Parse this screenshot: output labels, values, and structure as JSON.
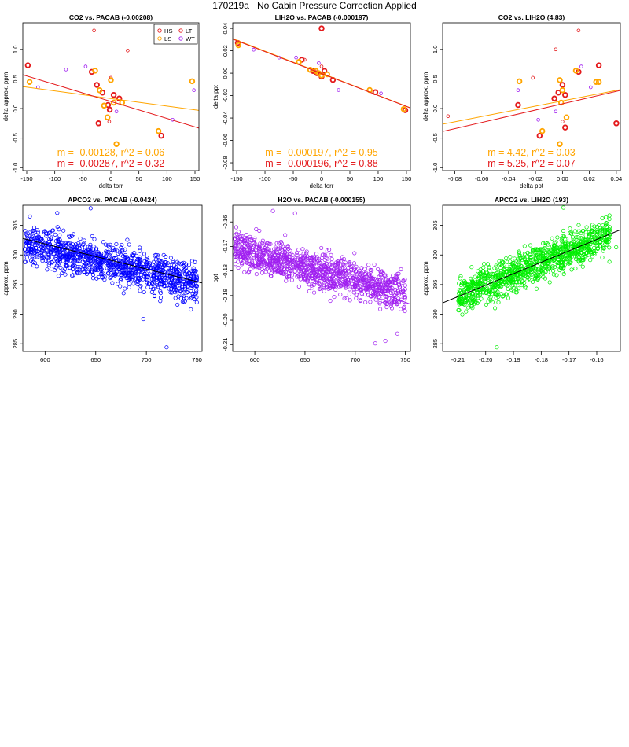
{
  "page": {
    "title": "170219a   No Cabin Pressure Correction Applied"
  },
  "colors": {
    "HS": "#e41a1c",
    "LS": "#ffa500",
    "LT": "#e41a1c",
    "WT": "#a020f0",
    "blue": "#0000ff",
    "purple": "#a020f0",
    "green": "#00ee00",
    "black": "#000000"
  },
  "chart_data": [
    {
      "type": "scatter",
      "title": "CO2 vs. PACAB (-0.00208)",
      "xlabel": "delta torr",
      "ylabel": "delta approx. ppm",
      "xlim": [
        -157,
        157
      ],
      "ylim": [
        -1.05,
        1.45
      ],
      "xticks": [
        -150,
        -100,
        -50,
        0,
        50,
        100,
        150
      ],
      "xtick_labels": [
        "-150",
        "-100",
        "-50",
        "0",
        "50",
        "100",
        "150"
      ],
      "yticks": [
        -1.0,
        -0.5,
        0.0,
        0.5,
        1.0
      ],
      "ytick_labels": [
        "-1.0",
        "-0.5",
        "0.0",
        "0.5",
        "1.0"
      ],
      "legend": {
        "position": "top-right",
        "entries": [
          {
            "key": "HS",
            "label": "HS"
          },
          {
            "key": "LS",
            "label": "LS"
          },
          {
            "key": "LT",
            "label": "LT"
          },
          {
            "key": "WT",
            "label": "WT"
          }
        ]
      },
      "fits": [
        {
          "key": "LS",
          "slope": -0.00128,
          "intercept": 0.17,
          "label": "m = -0.00128, r^2 = 0.06"
        },
        {
          "key": "HS",
          "slope": -0.00287,
          "intercept": 0.12,
          "label": "m = -0.00287, r^2 = 0.32"
        }
      ],
      "series": [
        {
          "key": "HS",
          "name": "HS",
          "bold": true,
          "x": [
            -148,
            -34,
            -25,
            -15,
            -5,
            -2,
            5,
            15,
            90,
            -22
          ],
          "y": [
            0.73,
            0.62,
            0.4,
            0.27,
            0.06,
            -0.02,
            0.23,
            0.17,
            -0.46,
            -0.25
          ]
        },
        {
          "key": "LS",
          "name": "LS",
          "bold": true,
          "x": [
            -145,
            -28,
            -20,
            -12,
            -6,
            0,
            5,
            20,
            145,
            10,
            85
          ],
          "y": [
            0.45,
            0.64,
            0.31,
            0.05,
            -0.15,
            0.48,
            0.1,
            0.1,
            0.46,
            -0.6,
            -0.38
          ]
        },
        {
          "key": "LT",
          "name": "LT",
          "bold": false,
          "x": [
            -30,
            30,
            0,
            -3
          ],
          "y": [
            1.32,
            0.98,
            0.52,
            -0.22
          ]
        },
        {
          "key": "WT",
          "name": "WT",
          "bold": false,
          "x": [
            -130,
            -80,
            -45,
            10,
            110,
            148
          ],
          "y": [
            0.36,
            0.66,
            0.71,
            -0.05,
            -0.19,
            0.31
          ]
        }
      ]
    },
    {
      "type": "scatter",
      "title": "LIH2O vs. PACAB (-0.000197)",
      "xlabel": "delta torr",
      "ylabel": "delta ppt",
      "xlim": [
        -157,
        157
      ],
      "ylim": [
        -0.087,
        0.045
      ],
      "xticks": [
        -150,
        -100,
        -50,
        0,
        50,
        100,
        150
      ],
      "xtick_labels": [
        "-150",
        "-100",
        "-50",
        "0",
        "50",
        "100",
        "150"
      ],
      "yticks": [
        -0.08,
        -0.06,
        -0.04,
        -0.02,
        0.0,
        0.02,
        0.04
      ],
      "ytick_labels": [
        "-0.08",
        "-0.06",
        "-0.04",
        "-0.02",
        "0.00",
        "0.02",
        "0.04"
      ],
      "fits": [
        {
          "key": "LS",
          "slope": -0.000197,
          "intercept": 0.0,
          "label": "m = -0.000197, r^2 = 0.95"
        },
        {
          "key": "HS",
          "slope": -0.000196,
          "intercept": -0.0003,
          "label": "m = -0.000196, r^2 = 0.88"
        }
      ],
      "series": [
        {
          "key": "HS",
          "name": "HS",
          "bold": true,
          "x": [
            -148,
            -35,
            -15,
            -8,
            0,
            5,
            20,
            95,
            148,
            0
          ],
          "y": [
            0.027,
            0.012,
            0.002,
            0.0,
            -0.003,
            0.002,
            -0.006,
            -0.017,
            -0.033,
            0.04
          ]
        },
        {
          "key": "LS",
          "name": "LS",
          "bold": true,
          "x": [
            -147,
            -40,
            -20,
            -10,
            -5,
            0,
            10,
            85,
            145
          ],
          "y": [
            0.025,
            0.01,
            0.003,
            0.002,
            0.0,
            -0.002,
            -0.001,
            -0.015,
            -0.032
          ]
        },
        {
          "key": "LT",
          "name": "LT",
          "bold": false,
          "x": [
            -30,
            0
          ],
          "y": [
            0.012,
            0.006
          ]
        },
        {
          "key": "WT",
          "name": "WT",
          "bold": false,
          "x": [
            -120,
            -75,
            -45,
            -5,
            30,
            105
          ],
          "y": [
            0.021,
            0.014,
            0.014,
            0.009,
            -0.015,
            -0.018
          ]
        }
      ]
    },
    {
      "type": "scatter",
      "title": "CO2 vs. LIH2O (4.83)",
      "xlabel": "delta ppt",
      "ylabel": "delta approx. ppm",
      "xlim": [
        -0.089,
        0.043
      ],
      "ylim": [
        -1.05,
        1.45
      ],
      "xticks": [
        -0.08,
        -0.06,
        -0.04,
        -0.02,
        0.0,
        0.02,
        0.04
      ],
      "xtick_labels": [
        "-0.08",
        "-0.06",
        "-0.04",
        "-0.02",
        "0.00",
        "0.02",
        "0.04"
      ],
      "yticks": [
        -1.0,
        -0.5,
        0.0,
        0.5,
        1.0
      ],
      "ytick_labels": [
        "-1.0",
        "-0.5",
        "0.0",
        "0.5",
        "1.0"
      ],
      "fits": [
        {
          "key": "LS",
          "slope": 4.42,
          "intercept": 0.13,
          "label": "m = 4.42, r^2 = 0.03"
        },
        {
          "key": "HS",
          "slope": 5.25,
          "intercept": 0.08,
          "label": "m = 5.25, r^2 = 0.07"
        }
      ],
      "series": [
        {
          "key": "HS",
          "name": "HS",
          "bold": true,
          "x": [
            -0.033,
            -0.017,
            -0.006,
            0.0,
            0.002,
            0.012,
            0.027,
            0.04,
            0.002,
            -0.003
          ],
          "y": [
            0.06,
            -0.46,
            0.17,
            0.4,
            0.23,
            0.62,
            0.73,
            -0.25,
            -0.32,
            0.27
          ]
        },
        {
          "key": "LS",
          "name": "LS",
          "bold": true,
          "x": [
            -0.032,
            -0.015,
            -0.001,
            -0.002,
            0.0,
            0.003,
            0.01,
            0.025,
            0.027,
            -0.002
          ],
          "y": [
            0.46,
            -0.38,
            0.1,
            0.48,
            0.31,
            -0.15,
            0.64,
            0.45,
            0.45,
            -0.6
          ]
        },
        {
          "key": "LT",
          "name": "LT",
          "bold": false,
          "x": [
            -0.005,
            0.012,
            -0.022,
            0.0,
            -0.085
          ],
          "y": [
            1.0,
            1.32,
            0.52,
            -0.22,
            -0.13
          ]
        },
        {
          "key": "WT",
          "name": "WT",
          "bold": false,
          "x": [
            -0.018,
            0.014,
            0.021,
            -0.033,
            -0.005
          ],
          "y": [
            -0.19,
            0.71,
            0.36,
            0.31,
            -0.05
          ]
        }
      ]
    },
    {
      "type": "scatter",
      "title": "APCO2 vs. PACAB (-0.0424)",
      "xlabel": "torr",
      "ylabel": "approx. ppm",
      "xlim": [
        578,
        755
      ],
      "ylim": [
        283.7,
        308.4
      ],
      "xticks": [
        600,
        650,
        700,
        750
      ],
      "xtick_labels": [
        "600",
        "650",
        "700",
        "750"
      ],
      "yticks": [
        285,
        290,
        295,
        300,
        305
      ],
      "ytick_labels": [
        "285",
        "290",
        "295",
        "300",
        "305"
      ],
      "color_key": "blue",
      "fits": [
        {
          "key": "black",
          "slope": -0.0424,
          "intercept": 327.3,
          "label": ""
        }
      ],
      "cloud": {
        "x_range": [
          580,
          750
        ],
        "y_start": 302.0,
        "y_end": 295.0,
        "spread": 3.2,
        "n": 1100,
        "seed": 11
      },
      "outliers": {
        "x": [
          585,
          612,
          645,
          720,
          697,
          744
        ],
        "y": [
          306.5,
          307.1,
          307.9,
          284.4,
          289.2,
          290.8
        ]
      }
    },
    {
      "type": "scatter",
      "title": "H2O vs. PACAB (-0.000155)",
      "xlabel": "torr",
      "ylabel": "ppt",
      "xlim": [
        578,
        755
      ],
      "ylim": [
        -0.2128,
        -0.1532
      ],
      "xticks": [
        600,
        650,
        700,
        750
      ],
      "xtick_labels": [
        "600",
        "650",
        "700",
        "750"
      ],
      "yticks": [
        -0.21,
        -0.2,
        -0.19,
        -0.18,
        -0.17,
        -0.16
      ],
      "ytick_labels": [
        "-0.21",
        "-0.20",
        "-0.19",
        "-0.18",
        "-0.17",
        "-0.16"
      ],
      "color_key": "purple",
      "fits": [
        {
          "key": "purple",
          "slope": -0.000155,
          "intercept": -0.0765,
          "label": ""
        }
      ],
      "cloud": {
        "x_range": [
          580,
          750
        ],
        "y_start": -0.171,
        "y_end": -0.189,
        "spread": 0.0075,
        "n": 1100,
        "seed": 23
      },
      "outliers": {
        "x": [
          618,
          640,
          720,
          730,
          742
        ],
        "y": [
          -0.1555,
          -0.1565,
          -0.2095,
          -0.2085,
          -0.2055
        ]
      }
    },
    {
      "type": "scatter",
      "title": "APCO2 vs. LIH2O (193)",
      "xlabel": "ppt",
      "ylabel": "approx. ppm",
      "xlim": [
        -0.2155,
        -0.1515
      ],
      "ylim": [
        283.7,
        308.4
      ],
      "xticks": [
        -0.21,
        -0.2,
        -0.19,
        -0.18,
        -0.17,
        -0.16
      ],
      "xtick_labels": [
        "-0.21",
        "-0.20",
        "-0.19",
        "-0.18",
        "-0.17",
        "-0.16"
      ],
      "yticks": [
        285,
        290,
        295,
        300,
        305
      ],
      "ytick_labels": [
        "285",
        "290",
        "295",
        "300",
        "305"
      ],
      "color_key": "green",
      "fits": [
        {
          "key": "black",
          "slope": 193,
          "intercept": 333.5,
          "label": ""
        }
      ],
      "cloud": {
        "x_range": [
          -0.21,
          -0.155
        ],
        "y_start": 293.0,
        "y_end": 303.6,
        "spread": 3.0,
        "n": 1100,
        "seed": 37
      },
      "outliers": {
        "x": [
          -0.196,
          -0.209,
          -0.158,
          -0.172,
          -0.153
        ],
        "y": [
          284.4,
          296.4,
          306.2,
          308.0,
          301.3
        ]
      }
    }
  ]
}
